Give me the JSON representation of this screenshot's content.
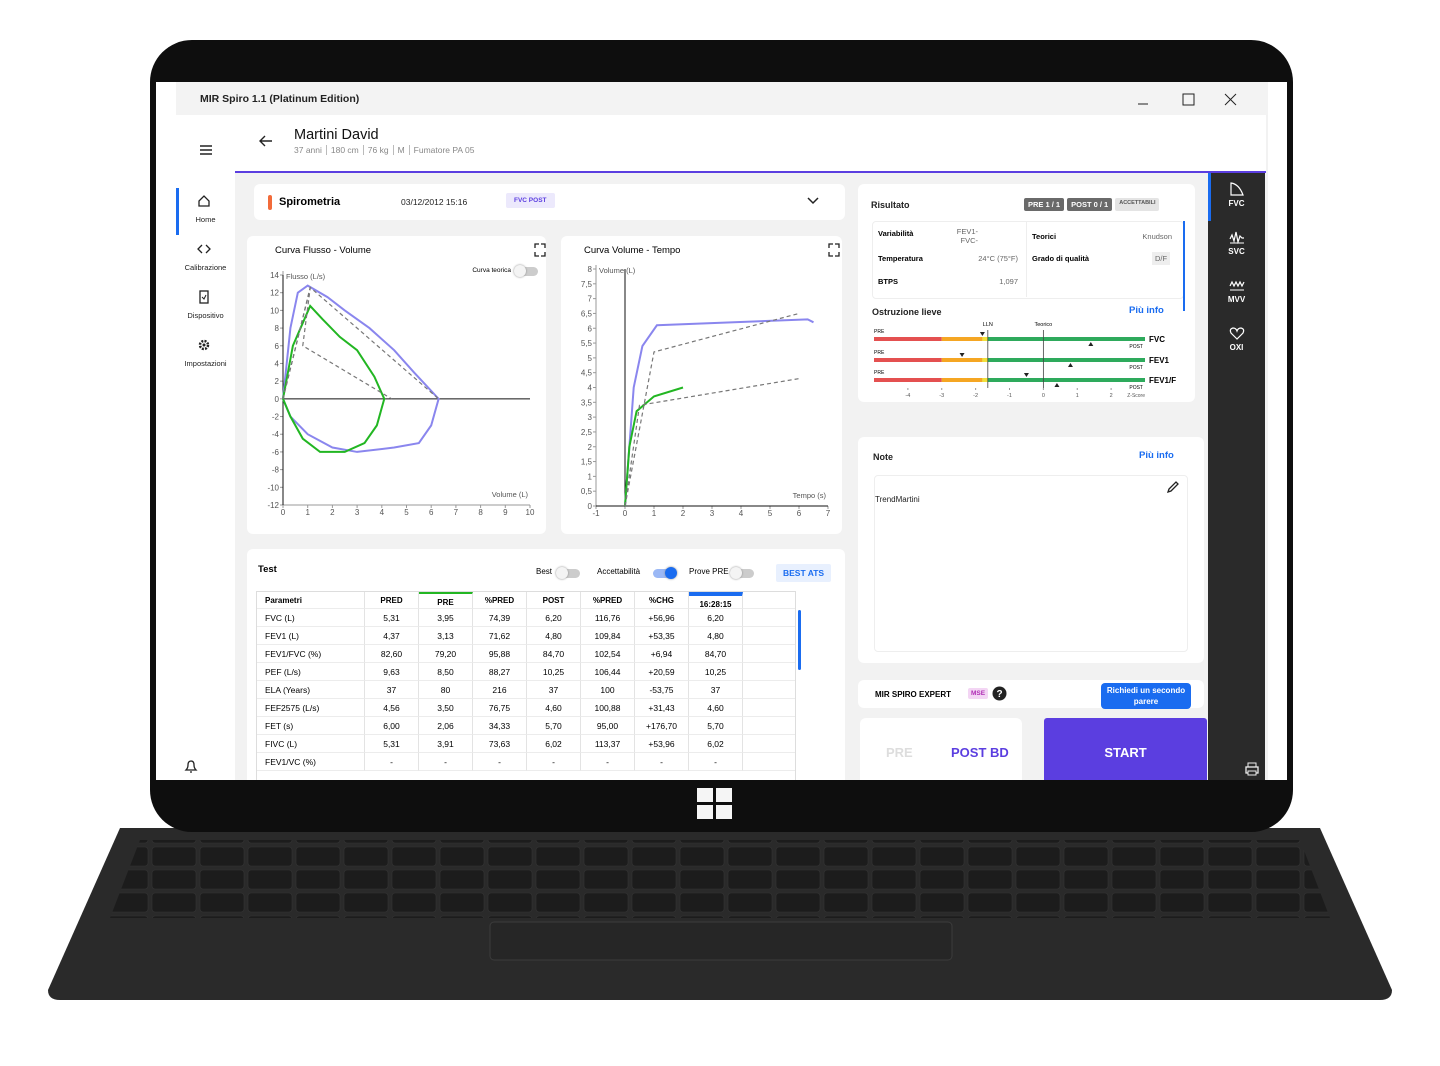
{
  "window": {
    "title": "MIR Spiro 1.1 (Platinum Edition)"
  },
  "nav": {
    "items": [
      "Home",
      "Calibrazione",
      "Dispositivo",
      "Impostazioni"
    ]
  },
  "patient": {
    "name": "Martini David",
    "details": [
      "37 anni",
      "180 cm",
      "76 kg",
      "M",
      "Fumatore PA 05"
    ]
  },
  "test_header": {
    "title": "Spirometria",
    "date": "03/12/2012 15:16",
    "badge": "FVC POST"
  },
  "tabs": [
    "FVC",
    "SVC",
    "MVV",
    "OXI"
  ],
  "chart_data": [
    {
      "type": "line",
      "title": "Curva Flusso - Volume",
      "x_label": "Volume (L)",
      "y_label": "Flusso (L/s)",
      "toggle": "Curva teorica",
      "xlim": [
        0,
        10
      ],
      "xticks": [
        0,
        1,
        2,
        3,
        4,
        5,
        6,
        7,
        8,
        9,
        10
      ],
      "ylim": [
        -12,
        14
      ],
      "yticks": [
        14,
        12,
        10,
        8,
        6,
        4,
        2,
        0,
        -2,
        -4,
        -6,
        -8,
        -10,
        -12
      ],
      "series": [
        {
          "color": "#8a86ee",
          "x": [
            0,
            0.3,
            0.6,
            1.0,
            1.8,
            2.5,
            3.5,
            4.5,
            5.3,
            5.8,
            6.3,
            6.0,
            5.5,
            4.5,
            3.0,
            2.0,
            1.0,
            0.3,
            0
          ],
          "values": [
            0,
            8,
            12,
            12.8,
            11.5,
            10,
            8,
            5.5,
            3,
            1.5,
            0,
            -3,
            -5,
            -5.5,
            -6,
            -5.5,
            -4,
            -2,
            0
          ]
        },
        {
          "color": "#22b622",
          "x": [
            0,
            0.4,
            1.1,
            1.6,
            2.3,
            3.0,
            3.7,
            4.1,
            3.8,
            3.3,
            2.5,
            1.5,
            0.8,
            0.3,
            0
          ],
          "values": [
            0,
            6,
            10.5,
            9,
            7,
            5.5,
            2.5,
            0,
            -3,
            -5,
            -6,
            -6,
            -4.5,
            -2,
            0
          ]
        },
        {
          "color": "#777777",
          "dashed": true,
          "x": [
            0,
            1.1,
            6.3
          ],
          "values": [
            0,
            12.6,
            0
          ]
        },
        {
          "color": "#777777",
          "dashed": true,
          "x": [
            0,
            1.1,
            0.8,
            4.4
          ],
          "values": [
            0,
            12.5,
            6,
            0
          ]
        }
      ]
    },
    {
      "type": "line",
      "title": "Curva Volume - Tempo",
      "x_label": "Tempo (s)",
      "y_label": "Volume (L)",
      "xlim": [
        -1,
        7
      ],
      "xticks": [
        -1,
        0,
        1,
        2,
        3,
        4,
        5,
        6,
        7
      ],
      "ylim": [
        0,
        8
      ],
      "yticks": [
        8,
        {
          "value": 7.5,
          "label": "7,5"
        },
        7,
        {
          "value": 6.5,
          "label": "6,5"
        },
        6,
        {
          "value": 5.5,
          "label": "5,5"
        },
        5,
        {
          "value": 4.5,
          "label": "4,5"
        },
        4,
        {
          "value": 3.5,
          "label": "3,5"
        },
        3,
        {
          "value": 2.5,
          "label": "2,5"
        },
        2,
        {
          "value": 1.5,
          "label": "1,5"
        },
        1,
        {
          "value": 0.5,
          "label": "0,5"
        },
        0
      ],
      "series": [
        {
          "color": "#8a86ee",
          "x": [
            0,
            0.15,
            0.3,
            0.6,
            1.1,
            6.3,
            6.5
          ],
          "values": [
            0,
            2,
            4,
            5.4,
            6.1,
            6.3,
            6.2
          ]
        },
        {
          "color": "#22b622",
          "x": [
            0,
            0.15,
            0.4,
            1.0,
            2.0
          ],
          "values": [
            0,
            2,
            3.2,
            3.7,
            4.0
          ]
        },
        {
          "color": "#777777",
          "dashed": true,
          "x": [
            0,
            1.0,
            6.0
          ],
          "values": [
            0,
            5.2,
            6.5
          ]
        },
        {
          "color": "#777777",
          "dashed": true,
          "x": [
            0,
            0.5,
            6.0
          ],
          "values": [
            0,
            3.4,
            4.3
          ]
        }
      ]
    }
  ],
  "test_panel": {
    "title": "Test",
    "toggles": [
      "Best",
      "Accettabilità",
      "Prove PRE"
    ],
    "button": "BEST ATS",
    "columns": [
      "Parametri",
      "PRED",
      "PRE",
      "%PRED",
      "POST",
      "%PRED",
      "%CHG",
      "16:28:15"
    ],
    "rows": [
      [
        "FVC (L)",
        "5,31",
        "3,95",
        "74,39",
        "6,20",
        "116,76",
        "+56,96",
        "6,20"
      ],
      [
        "FEV1 (L)",
        "4,37",
        "3,13",
        "71,62",
        "4,80",
        "109,84",
        "+53,35",
        "4,80"
      ],
      [
        "FEV1/FVC (%)",
        "82,60",
        "79,20",
        "95,88",
        "84,70",
        "102,54",
        "+6,94",
        "84,70"
      ],
      [
        "PEF (L/s)",
        "9,63",
        "8,50",
        "88,27",
        "10,25",
        "106,44",
        "+20,59",
        "10,25"
      ],
      [
        "ELA (Years)",
        "37",
        "80",
        "216",
        "37",
        "100",
        "-53,75",
        "37"
      ],
      [
        "FEF2575 (L/s)",
        "4,56",
        "3,50",
        "76,75",
        "4,60",
        "100,88",
        "+31,43",
        "4,60"
      ],
      [
        "FET (s)",
        "6,00",
        "2,06",
        "34,33",
        "5,70",
        "95,00",
        "+176,70",
        "5,70"
      ],
      [
        "FIVC (L)",
        "5,31",
        "3,91",
        "73,63",
        "6,02",
        "113,37",
        "+53,96",
        "6,02"
      ],
      [
        "FEV1/VC (%)",
        "-",
        "-",
        "-",
        "-",
        "-",
        "-",
        "-"
      ]
    ]
  },
  "result": {
    "title": "Risultato",
    "badges": [
      "PRE 1 / 1",
      "POST 0 / 1",
      "ACCETTABILI"
    ],
    "fields": [
      [
        "Variabilità",
        "FEV1- FVC-"
      ],
      [
        "Teorici",
        "Knudson"
      ],
      [
        "Temperatura",
        "24°C (75°F)"
      ],
      [
        "Grado di qualità",
        "D/F"
      ],
      [
        "BTPS",
        "1,097"
      ]
    ],
    "diagnosis": "Ostruzione lieve",
    "link": "Più info"
  },
  "zscore": {
    "pre_label": "PRE",
    "post_label": "POST",
    "axis_label": "Z-Score",
    "xlim": [
      -5,
      3
    ],
    "xticks": [
      -4,
      -3,
      -2,
      -1,
      0,
      1,
      2
    ],
    "lln": {
      "label": "LLN",
      "value": -1.64
    },
    "teorico": {
      "label": "Teorico",
      "value": 0
    },
    "rows": [
      {
        "name": "FVC",
        "pre": -1.8,
        "post": 1.4
      },
      {
        "name": "FEV1",
        "pre": -2.4,
        "post": 0.8
      },
      {
        "name": "FEV1/F",
        "pre": -0.5,
        "post": 0.4
      }
    ]
  },
  "notes": {
    "title": "Note",
    "link": "Più info",
    "text": "TrendMartini"
  },
  "expert": {
    "label": "MIR SPIRO EXPERT",
    "badge": "MSE",
    "button": "Richiedi un secondo parere"
  },
  "actions": [
    "PRE",
    "POST BD",
    "START"
  ]
}
